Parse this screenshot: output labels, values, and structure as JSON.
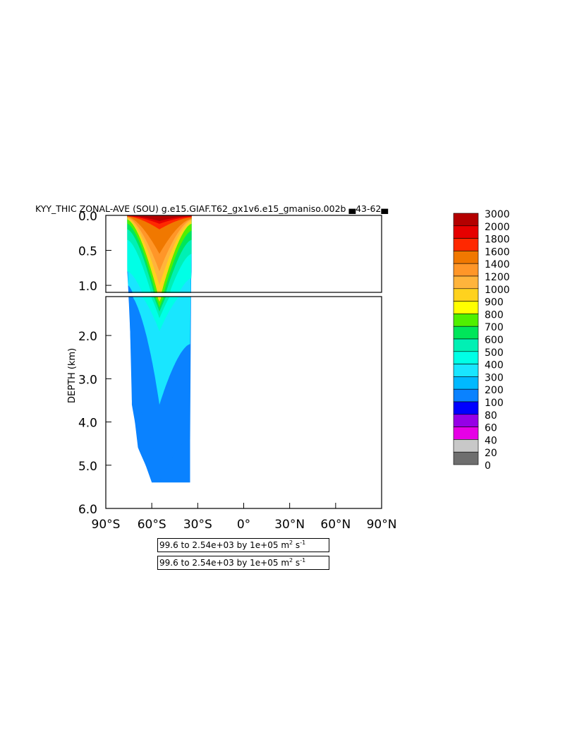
{
  "chart_data": {
    "type": "heatmap",
    "title": "KYY_THIC ZONAL-AVE (SOU) g.e15.GIAF.T62_gx1v6.e15_gmaniso.002b ▄43-62▄",
    "ylabel": "DEPTH (km)",
    "xlabel": "",
    "xlim": [
      -90,
      90
    ],
    "ylim": [
      6.0,
      0.0
    ],
    "upper_panel_ylim": [
      0.0,
      1.1
    ],
    "x_ticks": [
      "90°S",
      "60°S",
      "30°S",
      "0°",
      "30°N",
      "60°N",
      "90°N"
    ],
    "x_tick_values": [
      -90,
      -60,
      -30,
      0,
      30,
      60,
      90
    ],
    "upper_y_ticks": [
      "0.0",
      "0.5",
      "1.0"
    ],
    "upper_y_tick_values": [
      0.0,
      0.5,
      1.0
    ],
    "lower_y_ticks": [
      "2.0",
      "3.0",
      "4.0",
      "5.0",
      "6.0"
    ],
    "lower_y_tick_values": [
      2.0,
      3.0,
      4.0,
      5.0,
      6.0
    ],
    "colorbar_labels": [
      "3000",
      "2000",
      "1800",
      "1600",
      "1400",
      "1200",
      "1000",
      "900",
      "800",
      "700",
      "600",
      "500",
      "400",
      "300",
      "200",
      "100",
      "80",
      "60",
      "40",
      "20",
      "0"
    ],
    "colorbar_colors": [
      "#b40000",
      "#e60000",
      "#ff2800",
      "#f07800",
      "#ff9628",
      "#ffb43c",
      "#ffd21e",
      "#ffff00",
      "#50f000",
      "#00e65a",
      "#00f0b4",
      "#00ffe6",
      "#19e6ff",
      "#00b9ff",
      "#0a82ff",
      "#0000ff",
      "#9600e6",
      "#e600e6",
      "#c8c8c8",
      "#6e6e6e"
    ],
    "contour_levels": [
      100,
      200,
      300,
      400,
      500,
      600,
      700,
      800,
      900,
      1000,
      1200,
      1400,
      1600,
      1800,
      2000,
      3000
    ],
    "data_range": [
      99.6,
      2540
    ],
    "field": {
      "ocean_edges": [
        {
          "depth": 0.0,
          "lat_min": -76,
          "lat_max": -34
        },
        {
          "depth": 0.8,
          "lat_min": -76,
          "lat_max": -34
        },
        {
          "depth": 1.2,
          "lat_min": -75,
          "lat_max": -35
        },
        {
          "depth": 2.0,
          "lat_min": -74,
          "lat_max": -35
        },
        {
          "depth": 3.0,
          "lat_min": -73,
          "lat_max": -35
        },
        {
          "depth": 3.6,
          "lat_min": -73,
          "lat_max": -35
        },
        {
          "depth": 4.0,
          "lat_min": -71,
          "lat_max": -35
        },
        {
          "depth": 4.6,
          "lat_min": -69,
          "lat_max": -35
        },
        {
          "depth": 5.0,
          "lat_min": -64,
          "lat_max": -35
        },
        {
          "depth": 5.4,
          "lat_min": -60,
          "lat_max": -35
        }
      ],
      "bands_description": "level bands from surface max near 55S",
      "bands": [
        {
          "level": 100,
          "depth_at_edges": [
            3.5,
            4.4
          ],
          "core_depth": 5.4
        },
        {
          "level": 300,
          "depth_at_edges": [
            1.0,
            2.2
          ],
          "core_depth": 3.6
        },
        {
          "level": 400,
          "depth_at_edges": [
            0.8,
            0.9
          ],
          "core_depth": 1.9
        },
        {
          "level": 500,
          "depth_at_edges": [
            0.35,
            0.55
          ],
          "core_depth": 1.6
        },
        {
          "level": 600,
          "depth_at_edges": [
            0.2,
            0.35
          ],
          "core_depth": 1.45
        },
        {
          "level": 700,
          "depth_at_edges": [
            0.12,
            0.22
          ],
          "core_depth": 1.35
        },
        {
          "level": 900,
          "depth_at_edges": [
            0.06,
            0.12
          ],
          "core_depth": 1.22
        },
        {
          "level": 1000,
          "depth_at_edges": [
            0.04,
            0.08
          ],
          "core_depth": 1.0
        },
        {
          "level": 1200,
          "depth_at_edges": [
            0.03,
            0.06
          ],
          "core_depth": 0.8
        },
        {
          "level": 1400,
          "depth_at_edges": [
            0.02,
            0.05
          ],
          "core_depth": 0.55
        },
        {
          "level": 1600,
          "depth_at_edges": [
            0.015,
            0.03
          ],
          "core_depth": 0.2
        },
        {
          "level": 1800,
          "depth_at_edges": [
            0.01,
            0.02
          ],
          "core_depth": 0.12
        },
        {
          "level": 2000,
          "depth_at_edges": [
            0.005,
            0.01
          ],
          "core_depth": 0.08
        }
      ],
      "core_lat": -55
    }
  },
  "info_boxes": [
    {
      "text": "99.6 to 2.54e+03 by 1e+05 m",
      "sup1": "2",
      "mid": " s",
      "sup2": "-1"
    },
    {
      "text": "99.6 to 2.54e+03 by 1e+05 m",
      "sup1": "2",
      "mid": " s",
      "sup2": "-1"
    }
  ]
}
